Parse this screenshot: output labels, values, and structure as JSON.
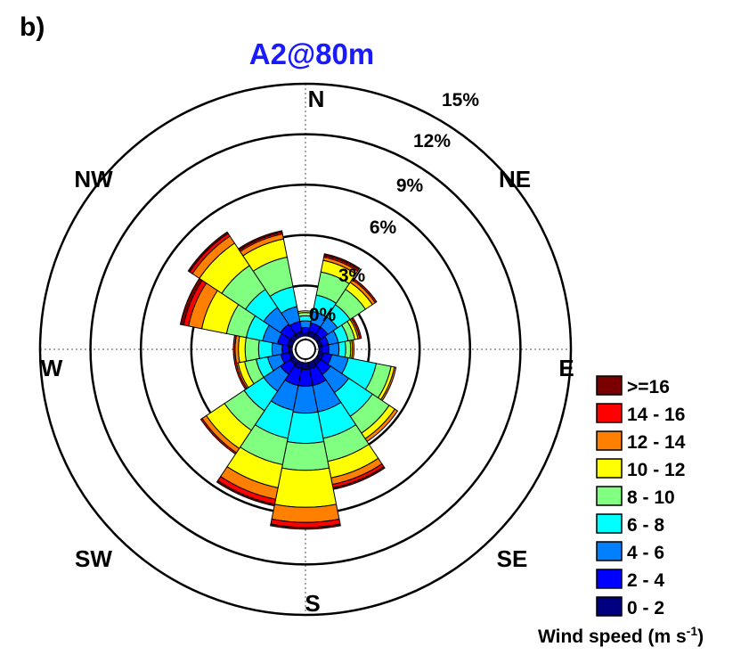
{
  "panel_label": "b)",
  "chart_data": {
    "type": "windrose",
    "title": "A2@80m",
    "directions": [
      "N",
      "NE",
      "E",
      "SE",
      "S",
      "SW",
      "W",
      "NW"
    ],
    "sector_count": 16,
    "radial_ticks": [
      0,
      3,
      6,
      9,
      12,
      15
    ],
    "radial_tick_labels": [
      "0%",
      "3%",
      "6%",
      "9%",
      "12%",
      "15%"
    ],
    "radial_max": 15,
    "units": "%",
    "legend": {
      "title_main": "Wind speed (m s",
      "title_sup": "-1",
      "title_end": ")",
      "bins": [
        {
          "label": ">=16",
          "color": "#7a0000"
        },
        {
          "label": "14 - 16",
          "color": "#ff0000"
        },
        {
          "label": "12 - 14",
          "color": "#ff8000"
        },
        {
          "label": "10 - 12",
          "color": "#ffff00"
        },
        {
          "label": "8 - 10",
          "color": "#80ff80"
        },
        {
          "label": "6 - 8",
          "color": "#00ffff"
        },
        {
          "label": "4 - 6",
          "color": "#0080ff"
        },
        {
          "label": "2 - 4",
          "color": "#0000ff"
        },
        {
          "label": "0 - 2",
          "color": "#000080"
        }
      ]
    },
    "bin_order": [
      "0 - 2",
      "2 - 4",
      "4 - 6",
      "6 - 8",
      "8 - 10",
      "10 - 12",
      "12 - 14",
      "14 - 16",
      ">=16"
    ],
    "sectors": [
      {
        "direction_deg": 0,
        "cumulative_pct": [
          0.2,
          0.5,
          0.9,
          1.2,
          1.4,
          1.5,
          1.5,
          1.5,
          1.5
        ]
      },
      {
        "direction_deg": 22.5,
        "cumulative_pct": [
          0.3,
          0.8,
          1.5,
          2.5,
          3.9,
          4.6,
          4.8,
          4.9,
          5.0
        ]
      },
      {
        "direction_deg": 45,
        "cumulative_pct": [
          0.3,
          0.8,
          1.5,
          2.4,
          3.5,
          4.0,
          4.2,
          4.3,
          4.3
        ]
      },
      {
        "direction_deg": 67.5,
        "cumulative_pct": [
          0.2,
          0.6,
          1.2,
          1.8,
          2.2,
          2.4,
          2.5,
          2.6,
          2.6
        ]
      },
      {
        "direction_deg": 90,
        "cumulative_pct": [
          0.2,
          0.6,
          1.2,
          1.6,
          1.9,
          2.0,
          2.1,
          2.1,
          2.1
        ]
      },
      {
        "direction_deg": 112.5,
        "cumulative_pct": [
          0.3,
          0.8,
          1.8,
          3.5,
          4.4,
          4.6,
          4.7,
          4.7,
          4.7
        ]
      },
      {
        "direction_deg": 135,
        "cumulative_pct": [
          0.3,
          1.0,
          2.3,
          4.0,
          5.2,
          5.6,
          5.8,
          5.8,
          5.8
        ]
      },
      {
        "direction_deg": 157.5,
        "cumulative_pct": [
          0.4,
          1.4,
          3.0,
          4.6,
          6.0,
          7.0,
          7.4,
          7.6,
          7.7
        ]
      },
      {
        "direction_deg": 180,
        "cumulative_pct": [
          0.4,
          1.4,
          3.0,
          4.8,
          6.4,
          8.6,
          9.5,
          9.8,
          9.9
        ]
      },
      {
        "direction_deg": 202.5,
        "cumulative_pct": [
          0.4,
          1.4,
          2.9,
          4.6,
          6.2,
          7.6,
          8.3,
          8.6,
          8.7
        ]
      },
      {
        "direction_deg": 225,
        "cumulative_pct": [
          0.3,
          1.0,
          2.2,
          3.6,
          5.0,
          6.3,
          6.6,
          6.7,
          6.7
        ]
      },
      {
        "direction_deg": 247.5,
        "cumulative_pct": [
          0.2,
          0.7,
          1.5,
          2.2,
          2.9,
          3.3,
          3.4,
          3.5,
          3.5
        ]
      },
      {
        "direction_deg": 270,
        "cumulative_pct": [
          0.2,
          0.6,
          1.2,
          2.0,
          2.8,
          3.2,
          3.4,
          3.5,
          3.5
        ]
      },
      {
        "direction_deg": 292.5,
        "cumulative_pct": [
          0.3,
          0.9,
          1.8,
          2.8,
          4.0,
          5.5,
          6.3,
          6.6,
          6.8
        ]
      },
      {
        "direction_deg": 315,
        "cumulative_pct": [
          0.3,
          1.0,
          2.2,
          3.5,
          5.2,
          6.8,
          7.3,
          7.5,
          7.6
        ]
      },
      {
        "direction_deg": 337.5,
        "cumulative_pct": [
          0.3,
          0.9,
          1.8,
          3.0,
          4.8,
          5.9,
          6.2,
          6.3,
          6.4
        ]
      }
    ],
    "grid": true
  }
}
